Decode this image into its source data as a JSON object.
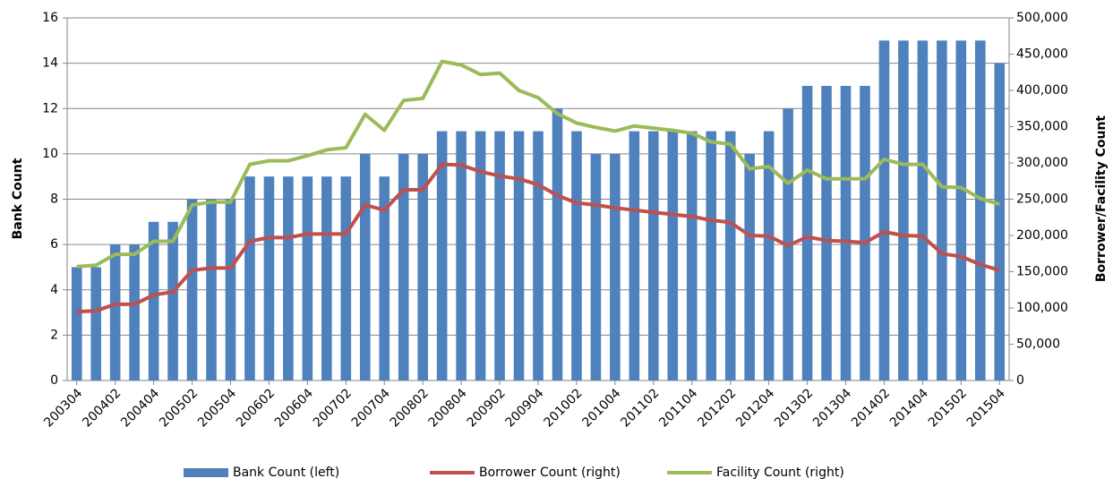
{
  "chart_data": {
    "type": "bar",
    "y_label": "Bank Count",
    "y2_label": "Borrower/Facility Count",
    "categories": [
      "200304",
      null,
      "200402",
      null,
      "200404",
      null,
      "200502",
      null,
      "200504",
      null,
      "200602",
      null,
      "200604",
      null,
      "200702",
      null,
      "200704",
      null,
      "200802",
      null,
      "200804",
      null,
      "200902",
      null,
      "200904",
      null,
      "201002",
      null,
      "201004",
      null,
      "201102",
      null,
      "201104",
      null,
      "201202",
      null,
      "201204",
      null,
      "201302",
      null,
      "201304",
      null,
      "201402",
      null,
      "201404",
      null,
      "201502",
      null,
      "201504"
    ],
    "series": [
      {
        "name": "Bank Count (left)",
        "type": "bar",
        "color": "#4f81bd",
        "values": [
          5,
          5,
          6,
          6,
          7,
          7,
          8,
          8,
          8,
          9,
          9,
          9,
          9,
          9,
          9,
          10,
          9,
          10,
          10,
          11,
          11,
          11,
          11,
          11,
          11,
          12,
          11,
          10,
          10,
          11,
          11,
          11,
          11,
          11,
          11,
          10,
          11,
          12,
          13,
          13,
          13,
          13,
          15,
          15,
          15,
          15,
          15,
          15,
          14
        ]
      },
      {
        "name": "Borrower Count (right)",
        "type": "line",
        "axis": "y2",
        "color": "#c0504d",
        "values": [
          95000,
          96000,
          105000,
          105000,
          118000,
          122000,
          152000,
          155000,
          155000,
          192000,
          197000,
          197000,
          202000,
          202000,
          202000,
          242000,
          235000,
          263000,
          263000,
          298000,
          297000,
          288000,
          282000,
          278000,
          270000,
          255000,
          245000,
          242000,
          238000,
          235000,
          232000,
          229000,
          226000,
          221000,
          218000,
          200000,
          199000,
          186000,
          198000,
          193000,
          192000,
          190000,
          205000,
          200000,
          199000,
          175000,
          171000,
          160000,
          152000
        ]
      },
      {
        "name": "Facility Count (right)",
        "type": "line",
        "axis": "y2",
        "color": "#9bbb59",
        "values": [
          157000,
          159000,
          174000,
          174000,
          192000,
          192000,
          242000,
          246000,
          246000,
          298000,
          303000,
          303000,
          310000,
          318000,
          321000,
          367000,
          345000,
          386000,
          389000,
          440000,
          435000,
          422000,
          424000,
          400000,
          390000,
          368000,
          355000,
          349000,
          344000,
          351000,
          348000,
          345000,
          341000,
          329000,
          326000,
          292000,
          295000,
          272000,
          290000,
          278000,
          278000,
          278000,
          305000,
          298000,
          298000,
          267000,
          266000,
          251000,
          243000
        ]
      }
    ],
    "ylim": [
      0,
      16
    ],
    "yticks": [
      0,
      2,
      4,
      6,
      8,
      10,
      12,
      14,
      16
    ],
    "y2lim": [
      0,
      500000
    ],
    "y2ticks": [
      0,
      {
        "value": 50000,
        "label": "50,000"
      },
      {
        "value": 100000,
        "label": "100,000"
      },
      {
        "value": 150000,
        "label": "150,000"
      },
      {
        "value": 200000,
        "label": "200,000"
      },
      {
        "value": 250000,
        "label": "250,000"
      },
      {
        "value": 300000,
        "label": "300,000"
      },
      {
        "value": 350000,
        "label": "350,000"
      },
      {
        "value": 400000,
        "label": "400,000"
      },
      {
        "value": 450000,
        "label": "450,000"
      },
      {
        "value": 500000,
        "label": "500,000"
      }
    ],
    "grid": true,
    "legend": "bottom"
  }
}
